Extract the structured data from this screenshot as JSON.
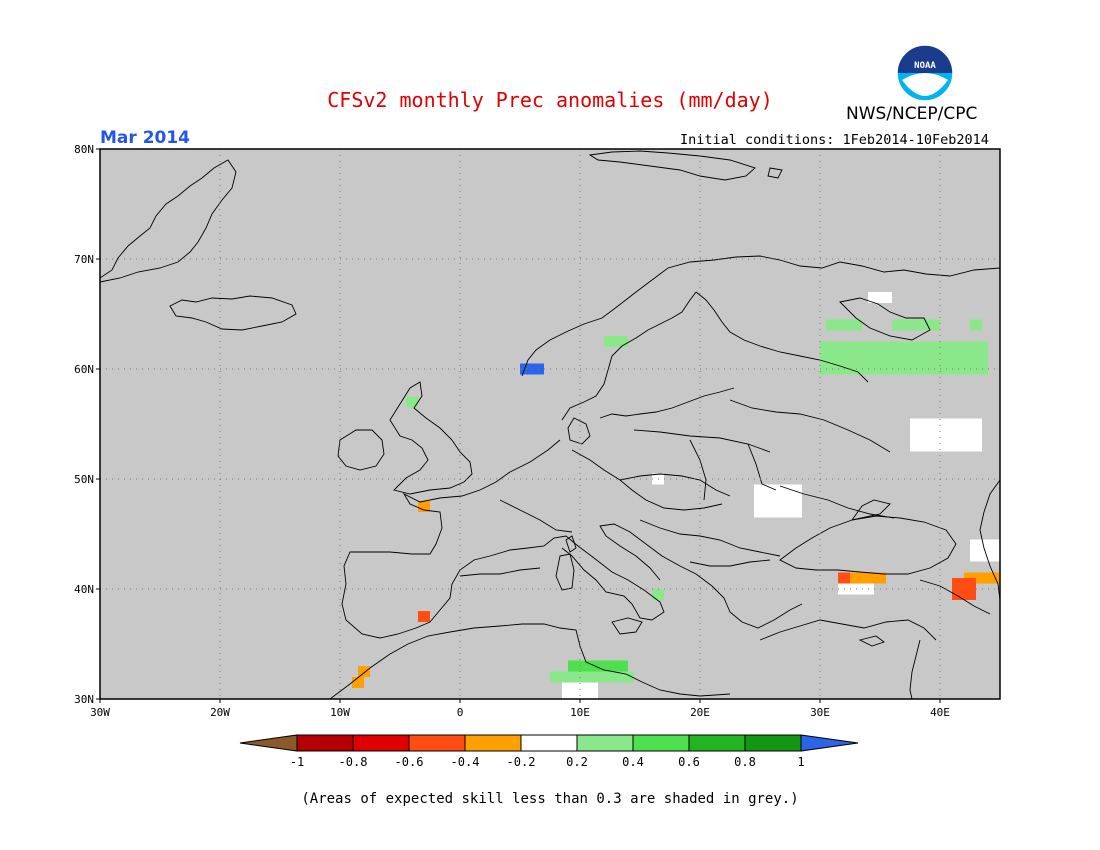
{
  "header": {
    "title": "CFSv2 monthly Prec anomalies (mm/day)",
    "month": "Mar 2014",
    "agency": "NWS/NCEP/CPC",
    "logo_text": "NOAA",
    "initial_conditions": "Initial conditions: 1Feb2014-10Feb2014"
  },
  "map": {
    "lon_range": [
      -30,
      45
    ],
    "lat_range": [
      30,
      80
    ],
    "lat_labels": [
      "80N",
      "70N",
      "60N",
      "50N",
      "40N",
      "30N"
    ],
    "lon_labels": [
      "30W",
      "20W",
      "10W",
      "0",
      "10E",
      "20E",
      "30E",
      "40E"
    ],
    "colors": {
      "background": "#c8c8c8",
      "grid": "#777777",
      "coast": "#000000"
    }
  },
  "anomaly_cells": [
    {
      "lon": 5.5,
      "lat": 60.0,
      "w": 2,
      "h": 1,
      "class": "1"
    },
    {
      "lon": 12.5,
      "lat": 62.5,
      "w": 2,
      "h": 1,
      "class": "0.2"
    },
    {
      "lon": 30.5,
      "lat": 62.0,
      "w": 14,
      "h": 3,
      "class": "0.2"
    },
    {
      "lon": 31.0,
      "lat": 64.0,
      "w": 3,
      "h": 1,
      "class": "0.2"
    },
    {
      "lon": 36.5,
      "lat": 64.0,
      "w": 4,
      "h": 1,
      "class": "0.2"
    },
    {
      "lon": 43.0,
      "lat": 64.0,
      "w": 1,
      "h": 1,
      "class": "0.2"
    },
    {
      "lon": -4.0,
      "lat": 57.0,
      "w": 1,
      "h": 1,
      "class": "0.2"
    },
    {
      "lon": 16.5,
      "lat": 39.5,
      "w": 1,
      "h": 1,
      "class": "0.2"
    },
    {
      "lon": 8.0,
      "lat": 32.0,
      "w": 7,
      "h": 1,
      "class": "0.2"
    },
    {
      "lon": 9.5,
      "lat": 33.0,
      "w": 5,
      "h": 1,
      "class": "0.4"
    },
    {
      "lon": 34.5,
      "lat": 66.5,
      "w": 2,
      "h": 1,
      "class": "-0.2"
    },
    {
      "lon": 38.0,
      "lat": 55.0,
      "w": 6,
      "h": 3,
      "class": "-0.2"
    },
    {
      "lon": 25.0,
      "lat": 49.0,
      "w": 4,
      "h": 3,
      "class": "-0.2"
    },
    {
      "lon": 16.5,
      "lat": 50.0,
      "w": 1,
      "h": 1,
      "class": "-0.2"
    },
    {
      "lon": 43.0,
      "lat": 44.0,
      "w": 3,
      "h": 2,
      "class": "-0.2"
    },
    {
      "lon": 9.0,
      "lat": 31.0,
      "w": 3,
      "h": 2,
      "class": "-0.2"
    },
    {
      "lon": 32.0,
      "lat": 40.0,
      "w": 3,
      "h": 1,
      "class": "-0.2"
    },
    {
      "lon": -3.0,
      "lat": 47.5,
      "w": 1,
      "h": 1,
      "class": "-0.4"
    },
    {
      "lon": 33.0,
      "lat": 41.0,
      "w": 3,
      "h": 1,
      "class": "-0.4"
    },
    {
      "lon": 42.5,
      "lat": 41.0,
      "w": 3,
      "h": 1,
      "class": "-0.4"
    },
    {
      "lon": -8.0,
      "lat": 32.5,
      "w": 1,
      "h": 1,
      "class": "-0.4"
    },
    {
      "lon": -8.5,
      "lat": 31.5,
      "w": 1,
      "h": 1,
      "class": "-0.4"
    },
    {
      "lon": -3.0,
      "lat": 37.5,
      "w": 1,
      "h": 1,
      "class": "-0.6"
    },
    {
      "lon": 32.0,
      "lat": 41.0,
      "w": 1,
      "h": 1,
      "class": "-0.6"
    },
    {
      "lon": 41.5,
      "lat": 40.5,
      "w": 2,
      "h": 2,
      "class": "-0.6"
    }
  ],
  "colorbar": {
    "labels": [
      "-1",
      "-0.8",
      "-0.6",
      "-0.4",
      "-0.2",
      "0.2",
      "0.4",
      "0.6",
      "0.8",
      "1"
    ],
    "colors": [
      "#8b5a2b",
      "#b40000",
      "#e00000",
      "#ff4d14",
      "#ff9f00",
      "#ffffff",
      "#8ae88a",
      "#4fe04f",
      "#22b422",
      "#149614",
      "#2c64e6"
    ]
  },
  "footnote": "(Areas of expected skill less than 0.3 are shaded in grey.)"
}
